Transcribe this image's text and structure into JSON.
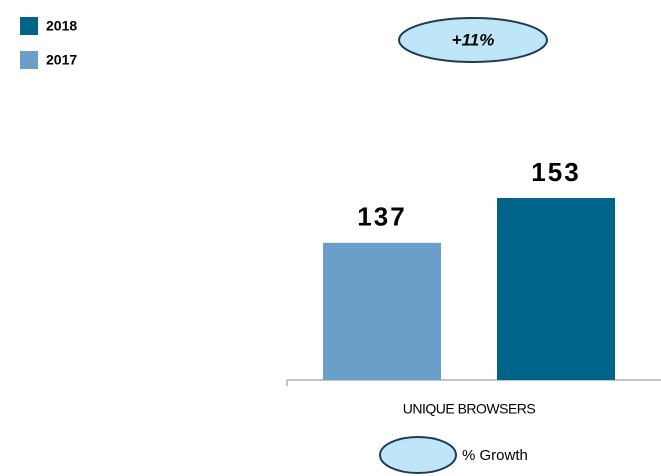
{
  "chart_data": {
    "type": "bar",
    "categories": [
      "UNIQUE BROWSERS"
    ],
    "series": [
      {
        "name": "2017",
        "color": "#6a9fca",
        "values": [
          137
        ]
      },
      {
        "name": "2018",
        "color": "#006489",
        "values": [
          153
        ]
      }
    ],
    "ylim": [
      88,
      188
    ],
    "annotation": "+11%",
    "annotation_legend": "% Growth"
  }
}
